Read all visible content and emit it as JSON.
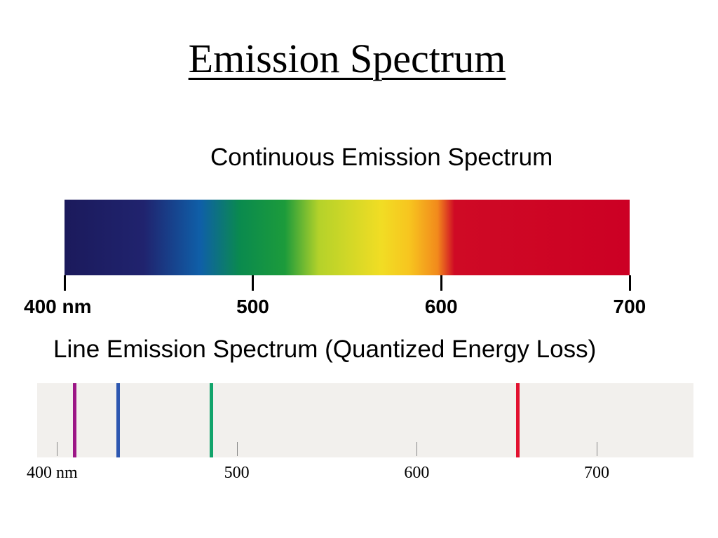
{
  "title": "Emission Spectrum",
  "continuous": {
    "heading": "Continuous Emission Spectrum",
    "range_nm": [
      400,
      700
    ],
    "ticks": [
      {
        "nm": 400,
        "label": "400 nm"
      },
      {
        "nm": 500,
        "label": "500"
      },
      {
        "nm": 600,
        "label": "600"
      },
      {
        "nm": 700,
        "label": "700"
      }
    ],
    "colors": [
      "#1b1a5c",
      "#20236e",
      "#0f5fa8",
      "#0a8a4e",
      "#1c9b3b",
      "#b4d22a",
      "#f1dd24",
      "#f7c51f",
      "#f28a1c",
      "#cf0a25",
      "#cc0024"
    ]
  },
  "line": {
    "heading": "Line Emission Spectrum (Quantized Energy Loss)",
    "ticks": [
      {
        "nm": 400,
        "label": "400 nm"
      },
      {
        "nm": 500,
        "label": "500"
      },
      {
        "nm": 600,
        "label": "600"
      },
      {
        "nm": 700,
        "label": "700"
      }
    ],
    "lines": [
      {
        "nm": 410,
        "color": "#9c1686"
      },
      {
        "nm": 434,
        "color": "#2d57b0"
      },
      {
        "nm": 486,
        "color": "#12a46b"
      },
      {
        "nm": 656,
        "color": "#e2112f"
      }
    ]
  }
}
